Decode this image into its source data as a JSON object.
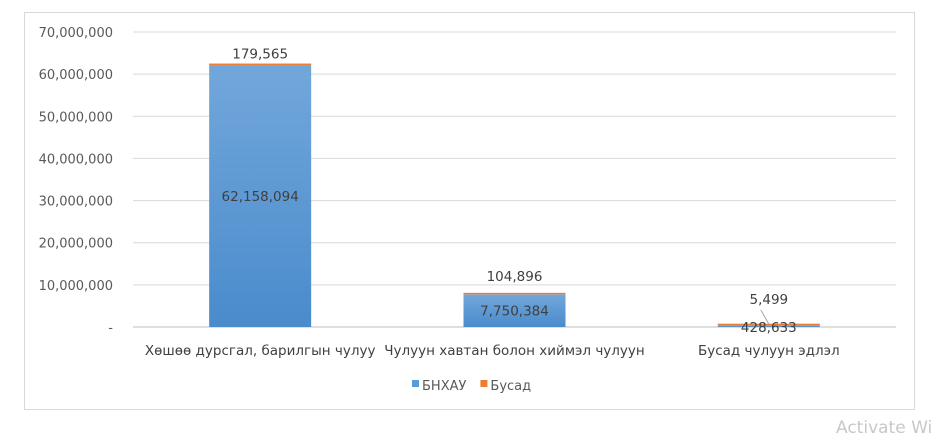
{
  "chart_data": {
    "type": "bar",
    "stacked": true,
    "categories": [
      "Хөшөө дурсгал, барилгын чулуу",
      "Чулуун хавтан болон хиймэл чулуун",
      "Бусад чулуун эдлэл"
    ],
    "series": [
      {
        "name": "БНХАУ",
        "values": [
          62158094,
          7750384,
          428633
        ],
        "labels": [
          "62,158,094",
          "7,750,384",
          "428,633"
        ],
        "color": "#5b9bd5"
      },
      {
        "name": "Бусад",
        "values": [
          179565,
          104896,
          5499
        ],
        "labels": [
          "179,565",
          "104,896",
          "5,499"
        ],
        "color": "#ed7d31"
      }
    ],
    "ylim": [
      0,
      70000000
    ],
    "yticks": [
      0,
      10000000,
      20000000,
      30000000,
      40000000,
      50000000,
      60000000,
      70000000
    ],
    "ytick_labels": [
      "-",
      "10,000,000",
      "20,000,000",
      "30,000,000",
      "40,000,000",
      "50,000,000",
      "60,000,000",
      "70,000,000"
    ],
    "grid": true,
    "legend": "bottom"
  },
  "watermark": "Activate Wi"
}
